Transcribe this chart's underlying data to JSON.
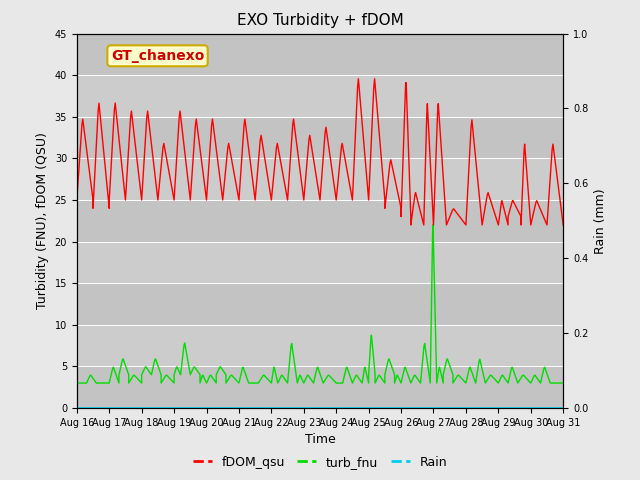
{
  "title": "EXO Turbidity + fDOM",
  "xlabel": "Time",
  "ylabel_left": "Turbidity (FNU), fDOM (QSU)",
  "ylabel_right": "Rain (mm)",
  "annotation": "GT_chanexo",
  "ylim_left": [
    0,
    45
  ],
  "ylim_right": [
    0,
    1.0
  ],
  "yticks_left": [
    0,
    5,
    10,
    15,
    20,
    25,
    30,
    35,
    40,
    45
  ],
  "yticks_right": [
    0.0,
    0.2,
    0.4,
    0.6,
    0.8,
    1.0
  ],
  "fig_bg_color": "#e8e8e8",
  "plot_bg_color": "#cccccc",
  "fdom_color": "#ff0000",
  "turb_color": "#00dd00",
  "rain_color": "#00ccee",
  "legend_labels": [
    "fDOM_qsu",
    "turb_fnu",
    "Rain"
  ],
  "xlim": [
    16,
    31
  ],
  "x_ticks": [
    16,
    17,
    18,
    19,
    20,
    21,
    22,
    23,
    24,
    25,
    26,
    27,
    28,
    29,
    30,
    31
  ],
  "x_labels": [
    "Aug 16",
    "Aug 17",
    "Aug 18",
    "Aug 19",
    "Aug 20",
    "Aug 21",
    "Aug 22",
    "Aug 23",
    "Aug 24",
    "Aug 25",
    "Aug 26",
    "Aug 27",
    "Aug 28",
    "Aug 29",
    "Aug 30",
    "Aug 31"
  ],
  "title_fontsize": 11,
  "tick_fontsize": 7,
  "label_fontsize": 9,
  "legend_fontsize": 9,
  "annotation_fontsize": 10
}
